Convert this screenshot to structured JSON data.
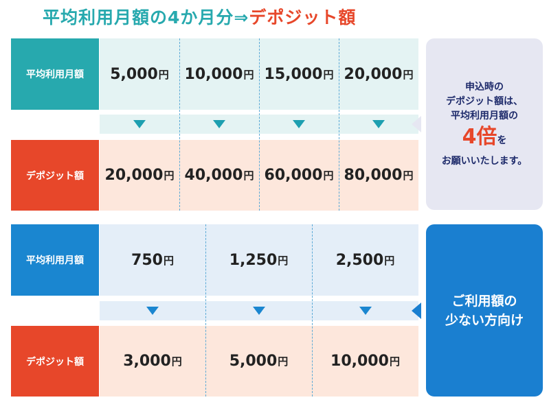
{
  "title": {
    "prefix": "平均利用月額の4か月分⇒",
    "highlight": "デポジット額"
  },
  "section1": {
    "row_label_top": "平均利用月額",
    "row_label_bottom": "デポジット額",
    "top_values": [
      "5,000",
      "10,000",
      "15,000",
      "20,000"
    ],
    "bottom_values": [
      "20,000",
      "40,000",
      "60,000",
      "80,000"
    ],
    "unit": "円",
    "callout": {
      "line1": "申込時の",
      "line2": "デポジット額は、",
      "line3": "平均利用月額の",
      "big": "4倍",
      "suffix": "を",
      "line5": "お願いいたします。"
    }
  },
  "section2": {
    "row_label_top": "平均利用月額",
    "row_label_bottom": "デポジット額",
    "top_values": [
      "750",
      "1,250",
      "2,500"
    ],
    "bottom_values": [
      "3,000",
      "5,000",
      "10,000"
    ],
    "unit": "円",
    "callout": {
      "line1": "ご利用額の",
      "line2": "少ない方向け"
    }
  },
  "colors": {
    "teal": "#27a9ae",
    "red": "#e7472a",
    "blue": "#1a86d0",
    "teal_band": "#e4f3f3",
    "peach_band": "#fde7dc",
    "blue_band": "#e4eef8",
    "callout_gray": "#e6e7f2",
    "callout_blue": "#1a7fd0"
  }
}
